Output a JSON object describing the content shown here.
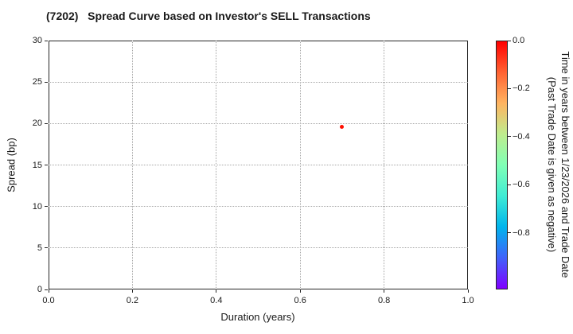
{
  "chart_data": {
    "type": "scatter",
    "title": "(7202)   Spread Curve based on Investor's SELL Transactions",
    "xlabel": "Duration (years)",
    "ylabel": "Spread (bp)",
    "xlim": [
      0.0,
      1.0
    ],
    "ylim": [
      0,
      30
    ],
    "grid": true,
    "xticks": [
      {
        "label": "0.0",
        "value": 0.0
      },
      {
        "label": "0.2",
        "value": 0.2
      },
      {
        "label": "0.4",
        "value": 0.4
      },
      {
        "label": "0.6",
        "value": 0.6
      },
      {
        "label": "0.8",
        "value": 0.8
      },
      {
        "label": "1.0",
        "value": 1.0
      }
    ],
    "yticks": [
      {
        "label": "0",
        "value": 0
      },
      {
        "label": "5",
        "value": 5
      },
      {
        "label": "10",
        "value": 10
      },
      {
        "label": "15",
        "value": 15
      },
      {
        "label": "20",
        "value": 20
      },
      {
        "label": "25",
        "value": 25
      },
      {
        "label": "30",
        "value": 30
      }
    ],
    "points": [
      {
        "x": 0.7,
        "y": 19.6,
        "color": "#ff0f00",
        "colorbar_value": 0.0
      }
    ],
    "colorbar": {
      "colormap": "rainbow",
      "label_line1": "Time in years between 1/23/2026 and Trade Date",
      "label_line2": "(Past Trade Date is given as negative)",
      "ticks": [
        {
          "label": "0.0",
          "value": 0.0
        },
        {
          "label": "−0.2",
          "value": -0.2
        },
        {
          "label": "−0.4",
          "value": -0.4
        },
        {
          "label": "−0.6",
          "value": -0.6
        },
        {
          "label": "−0.8",
          "value": -0.8
        }
      ],
      "value_at_top": 0.0,
      "value_at_bottom": -1.035,
      "gradient_top_to_bottom": [
        "#ff0000",
        "#ff6232",
        "#ffb461",
        "#bfec8e",
        "#80ffb5",
        "#40ecd4",
        "#00b4ec",
        "#4062fa",
        "#8000ff"
      ]
    }
  }
}
